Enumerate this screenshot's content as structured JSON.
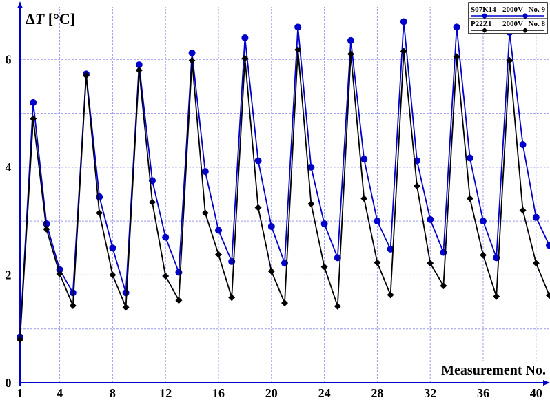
{
  "chart_data": {
    "type": "line",
    "ylabel": "ΔT [°C]",
    "xlabel": "Measurement No.",
    "xlim": [
      1,
      41
    ],
    "ylim": [
      0,
      7
    ],
    "x_ticks": [
      1,
      4,
      8,
      12,
      16,
      20,
      24,
      28,
      32,
      36,
      40
    ],
    "y_ticks": [
      0,
      2,
      4,
      6
    ],
    "grid": true,
    "legend_position": "top-right",
    "x": [
      1,
      2,
      3,
      4,
      5,
      6,
      7,
      8,
      9,
      10,
      11,
      12,
      13,
      14,
      15,
      16,
      17,
      18,
      19,
      20,
      21,
      22,
      23,
      24,
      25,
      26,
      27,
      28,
      29,
      30,
      31,
      32,
      33,
      34,
      35,
      36,
      37,
      38,
      39,
      40,
      41
    ],
    "series": [
      {
        "name": "S07K14",
        "voltage": "2000V",
        "number": "No. 9",
        "color": "#0000cc",
        "marker": "circle",
        "values": [
          0.85,
          5.2,
          2.95,
          2.1,
          1.67,
          5.73,
          3.45,
          2.5,
          1.67,
          5.9,
          3.75,
          2.7,
          2.05,
          6.12,
          3.92,
          2.83,
          2.25,
          6.4,
          4.12,
          2.9,
          2.22,
          6.6,
          4.0,
          2.95,
          2.32,
          6.35,
          4.15,
          3.0,
          2.48,
          6.7,
          4.12,
          3.03,
          2.42,
          6.6,
          4.17,
          3.0,
          2.32,
          6.5,
          4.42,
          3.07,
          2.55
        ]
      },
      {
        "name": "P22Z1",
        "voltage": "2000V",
        "number": "No. 8",
        "color": "#000000",
        "marker": "diamond",
        "values": [
          0.8,
          4.9,
          2.85,
          2.02,
          1.43,
          5.7,
          3.15,
          2.0,
          1.4,
          5.8,
          3.35,
          1.98,
          1.53,
          5.98,
          3.15,
          2.38,
          1.58,
          6.02,
          3.25,
          2.07,
          1.48,
          6.18,
          3.32,
          2.15,
          1.42,
          6.1,
          3.42,
          2.23,
          1.63,
          6.15,
          3.65,
          2.22,
          1.8,
          6.05,
          3.42,
          2.37,
          1.6,
          5.98,
          3.2,
          2.22,
          1.62
        ]
      }
    ]
  }
}
